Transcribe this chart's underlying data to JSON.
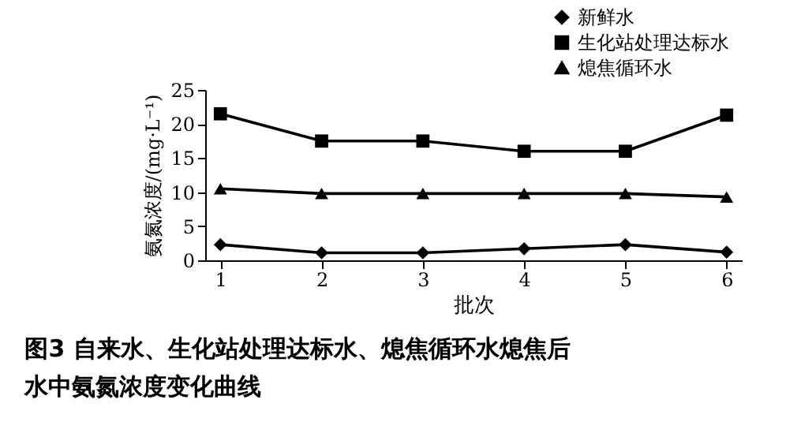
{
  "chart_data": {
    "type": "line",
    "title": "图3  自来水、生化站处理达标水、熄焦循环水熄焦后水中氨氮浓度变化曲线",
    "xlabel": "批次",
    "ylabel": "氨氮浓度/(mg·L⁻¹)",
    "categories": [
      "1",
      "2",
      "3",
      "4",
      "5",
      "6"
    ],
    "ylim": [
      0,
      25
    ],
    "yticks": [
      0,
      5,
      10,
      15,
      20,
      25
    ],
    "grid": false,
    "legend": "top right",
    "line_style": "solid",
    "series": [
      {
        "name": "新鲜水",
        "color": "#000000",
        "marker": "diamond",
        "values": [
          2.3,
          1.1,
          1.1,
          1.7,
          2.3,
          1.2
        ]
      },
      {
        "name": "生化站处理达标水",
        "color": "#000000",
        "marker": "square",
        "values": [
          21.5,
          17.5,
          17.5,
          16.0,
          16.0,
          21.3
        ]
      },
      {
        "name": "熄焦循环水",
        "color": "#000000",
        "marker": "triangle",
        "values": [
          10.5,
          9.8,
          9.8,
          9.8,
          9.8,
          9.3
        ]
      }
    ]
  }
}
